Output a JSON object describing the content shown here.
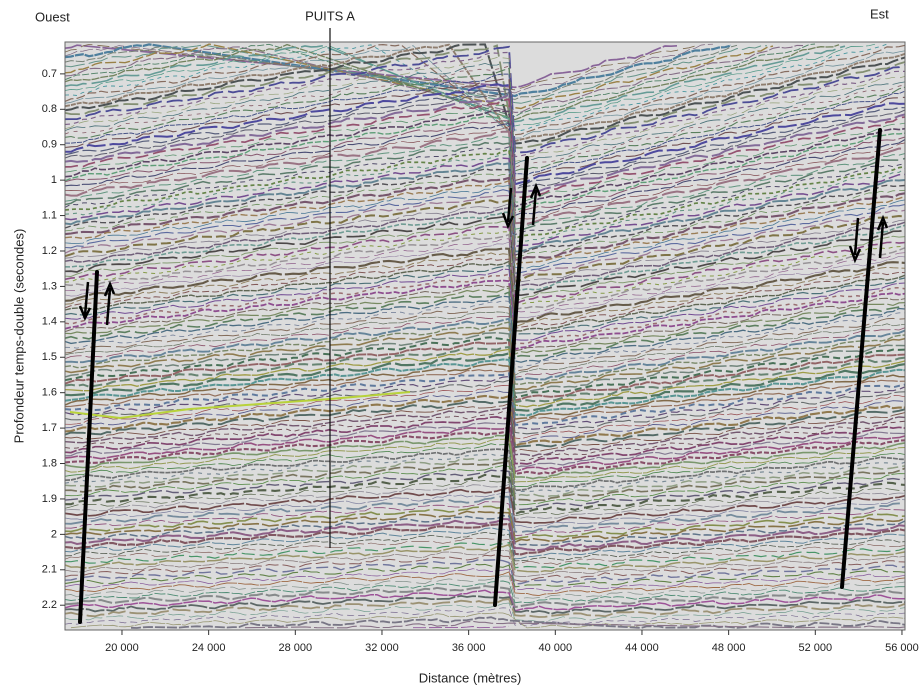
{
  "labels": {
    "west": "Ouest",
    "well": "PUITS A",
    "east": "Est"
  },
  "axes": {
    "y": {
      "label": "Profondeur temps-double (secondes)",
      "lim": [
        0.61,
        2.27
      ],
      "ticks": [
        0.7,
        0.8,
        0.9,
        1.0,
        1.1,
        1.2,
        1.3,
        1.4,
        1.5,
        1.6,
        1.7,
        1.8,
        1.9,
        2.0,
        2.1,
        2.2
      ]
    },
    "x": {
      "label": "Distance (mètres)",
      "lim": [
        17370,
        56140
      ],
      "ticks": [
        {
          "value": 20000,
          "label": "20 000"
        },
        {
          "value": 24000,
          "label": "24 000"
        },
        {
          "value": 28000,
          "label": "28 000"
        },
        {
          "value": 32000,
          "label": "32 000"
        },
        {
          "value": 36000,
          "label": "36 000"
        },
        {
          "value": 40000,
          "label": "40 000"
        },
        {
          "value": 44000,
          "label": "44 000"
        },
        {
          "value": 48000,
          "label": "48 000"
        },
        {
          "value": 52000,
          "label": "52 000"
        },
        {
          "value": 56000,
          "label": "56 000"
        }
      ]
    }
  }
}
